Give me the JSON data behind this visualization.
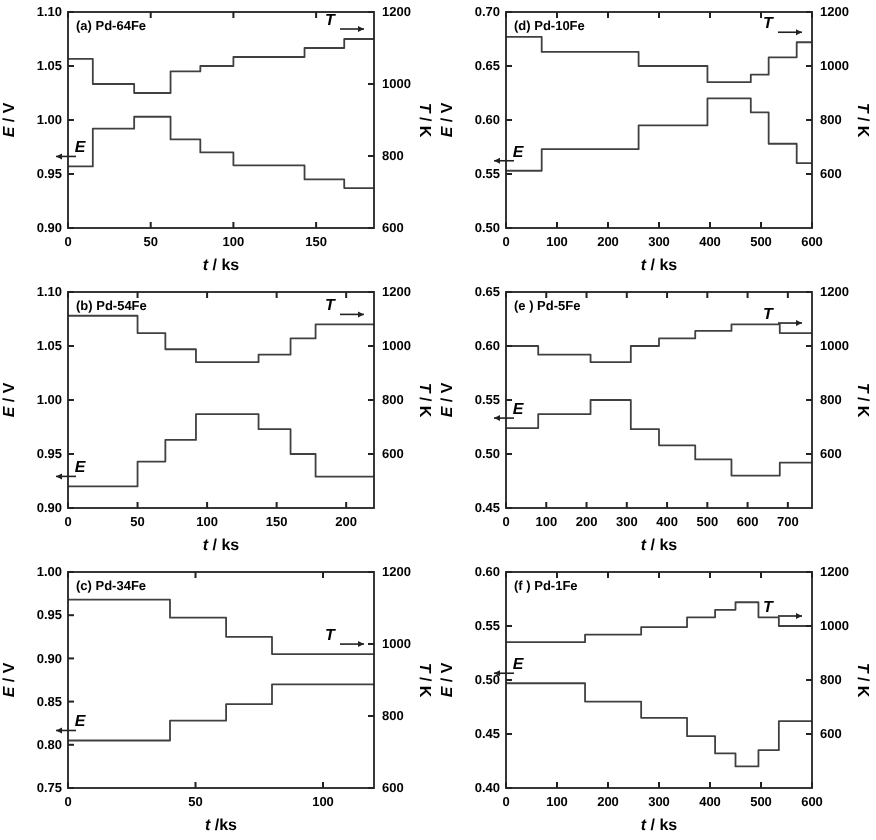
{
  "chart_data": [
    {
      "type": "step",
      "xlabel": "t / ks",
      "ylabel": "E / V",
      "y2label": "T / K",
      "xlim": [
        0,
        185
      ],
      "xticks": [
        0,
        50,
        100,
        150
      ],
      "ylim": [
        0.9,
        1.1
      ],
      "yticks": [
        {
          "value": 0.9,
          "label": "0.90"
        },
        0.95,
        {
          "value": 1.0,
          "label": "1.00"
        },
        1.05,
        {
          "value": 1.1,
          "label": "1.10"
        }
      ],
      "y2lim": [
        600,
        1200
      ],
      "y2ticks": [
        600,
        800,
        1000,
        1200
      ],
      "annotations": [
        "(a) Pd-64Fe",
        "E",
        "T"
      ],
      "series": [
        {
          "color": "#404040",
          "x": [
            0,
            15,
            40,
            62,
            80,
            100,
            143,
            167,
            185
          ],
          "values": [
            0.957,
            0.992,
            1.003,
            0.982,
            0.97,
            0.958,
            0.945,
            0.937,
            0.937
          ]
        },
        {
          "color": "#404040",
          "axis": "y2",
          "x": [
            0,
            15,
            40,
            62,
            80,
            100,
            143,
            167,
            185
          ],
          "values": [
            1070,
            1000,
            975,
            1035,
            1050,
            1075,
            1100,
            1125,
            1125
          ]
        }
      ]
    },
    {
      "type": "step",
      "xlabel": "t / ks",
      "ylabel": "E / V",
      "y2label": "T / K",
      "xlim": [
        0,
        600
      ],
      "xticks": [
        0,
        100,
        200,
        300,
        400,
        500,
        600
      ],
      "ylim": [
        0.5,
        0.7
      ],
      "yticks": [
        {
          "value": 0.5,
          "label": "0.50"
        },
        0.55,
        {
          "value": 0.6,
          "label": "0.60"
        },
        0.65,
        {
          "value": 0.7,
          "label": "0.70"
        }
      ],
      "y2lim": [
        400,
        1200
      ],
      "y2ticks": [
        600,
        800,
        1000,
        1200
      ],
      "annotations": [
        "(d) Pd-10Fe",
        "E",
        "T"
      ],
      "series": [
        {
          "color": "#404040",
          "x": [
            0,
            70,
            260,
            395,
            480,
            515,
            570,
            600
          ],
          "values": [
            0.553,
            0.573,
            0.595,
            0.62,
            0.607,
            0.578,
            0.56,
            0.56
          ]
        },
        {
          "color": "#404040",
          "axis": "y2",
          "x": [
            0,
            70,
            260,
            395,
            480,
            515,
            570,
            600
          ],
          "values": [
            1108,
            1052,
            1000,
            940,
            968,
            1032,
            1088,
            1088
          ]
        }
      ]
    },
    {
      "type": "step",
      "xlabel": "t / ks",
      "ylabel": "E / V",
      "y2label": "T / K",
      "xlim": [
        0,
        220
      ],
      "xticks": [
        0,
        50,
        100,
        150,
        200
      ],
      "ylim": [
        0.9,
        1.1
      ],
      "yticks": [
        {
          "value": 0.9,
          "label": "0.90"
        },
        0.95,
        {
          "value": 1.0,
          "label": "1.00"
        },
        1.05,
        {
          "value": 1.1,
          "label": "1.10"
        }
      ],
      "y2lim": [
        400,
        1200
      ],
      "y2ticks": [
        600,
        800,
        1000,
        1200
      ],
      "annotations": [
        "(b) Pd-54Fe",
        "E",
        "T"
      ],
      "series": [
        {
          "color": "#404040",
          "x": [
            0,
            50,
            70,
            92,
            137,
            160,
            178,
            220
          ],
          "values": [
            0.92,
            0.943,
            0.963,
            0.987,
            0.973,
            0.95,
            0.929,
            0.929
          ]
        },
        {
          "color": "#404040",
          "axis": "y2",
          "x": [
            0,
            50,
            70,
            92,
            137,
            160,
            178,
            220
          ],
          "values": [
            1112,
            1048,
            988,
            940,
            968,
            1028,
            1080,
            1080
          ]
        }
      ]
    },
    {
      "type": "step",
      "xlabel": "t / ks",
      "ylabel": "E / V",
      "y2label": "T / K",
      "xlim": [
        0,
        760
      ],
      "xticks": [
        0,
        100,
        200,
        300,
        400,
        500,
        600,
        700
      ],
      "ylim": [
        0.45,
        0.65
      ],
      "yticks": [
        0.45,
        {
          "value": 0.5,
          "label": "0.50"
        },
        0.55,
        {
          "value": 0.6,
          "label": "0.60"
        },
        0.65
      ],
      "y2lim": [
        400,
        1200
      ],
      "y2ticks": [
        600,
        800,
        1000,
        1200
      ],
      "annotations": [
        "(e ) Pd-5Fe",
        "E",
        "T"
      ],
      "series": [
        {
          "color": "#404040",
          "x": [
            0,
            80,
            210,
            310,
            380,
            470,
            560,
            680,
            760
          ],
          "values": [
            0.524,
            0.537,
            0.55,
            0.523,
            0.508,
            0.495,
            0.48,
            0.492,
            0.492
          ]
        },
        {
          "color": "#404040",
          "axis": "y2",
          "x": [
            0,
            80,
            210,
            310,
            380,
            470,
            560,
            680,
            760
          ],
          "values": [
            1000,
            968,
            940,
            1000,
            1028,
            1056,
            1080,
            1048,
            1048
          ]
        }
      ]
    },
    {
      "type": "step",
      "xlabel": "t /ks",
      "ylabel": "E / V",
      "y2label": "T / K",
      "xlim": [
        0,
        120
      ],
      "xticks": [
        0,
        50,
        100
      ],
      "ylim": [
        0.75,
        1.0
      ],
      "yticks": [
        0.75,
        {
          "value": 0.8,
          "label": "0.80"
        },
        0.85,
        {
          "value": 0.9,
          "label": "0.90"
        },
        0.95,
        {
          "value": 1.0,
          "label": "1.00"
        }
      ],
      "y2lim": [
        600,
        1200
      ],
      "y2ticks": [
        600,
        800,
        1000,
        1200
      ],
      "annotations": [
        "(c) Pd-34Fe",
        "E",
        "T"
      ],
      "series": [
        {
          "color": "#404040",
          "x": [
            0,
            40,
            62,
            80,
            120
          ],
          "values": [
            0.805,
            0.828,
            0.847,
            0.87,
            0.87
          ]
        },
        {
          "color": "#404040",
          "axis": "y2",
          "x": [
            0,
            40,
            62,
            80,
            120
          ],
          "values": [
            1123,
            1073,
            1020,
            972,
            972
          ]
        }
      ]
    },
    {
      "type": "step",
      "xlabel": "t / ks",
      "ylabel": "E / V",
      "y2label": "T / K",
      "xlim": [
        0,
        600
      ],
      "xticks": [
        0,
        100,
        200,
        300,
        400,
        500,
        600
      ],
      "ylim": [
        0.4,
        0.6
      ],
      "yticks": [
        {
          "value": 0.4,
          "label": "0.40"
        },
        0.45,
        {
          "value": 0.5,
          "label": "0.50"
        },
        0.55,
        {
          "value": 0.6,
          "label": "0.60"
        }
      ],
      "y2lim": [
        400,
        1200
      ],
      "y2ticks": [
        600,
        800,
        1000,
        1200
      ],
      "annotations": [
        "(f ) Pd-1Fe",
        "E",
        "T"
      ],
      "series": [
        {
          "color": "#404040",
          "x": [
            0,
            155,
            265,
            355,
            410,
            450,
            495,
            535,
            600
          ],
          "values": [
            0.497,
            0.48,
            0.465,
            0.448,
            0.432,
            0.42,
            0.435,
            0.462,
            0.462
          ]
        },
        {
          "color": "#404040",
          "axis": "y2",
          "x": [
            0,
            155,
            265,
            355,
            410,
            450,
            495,
            535,
            600
          ],
          "values": [
            940,
            968,
            996,
            1032,
            1060,
            1088,
            1032,
            1000,
            1000
          ]
        }
      ]
    }
  ]
}
